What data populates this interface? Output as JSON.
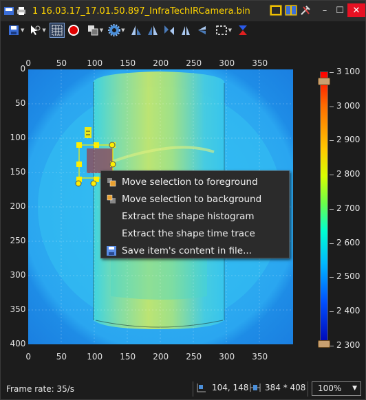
{
  "window": {
    "title": "1 16.03.17_17.01.50.897_InfraTechIRCamera.bin",
    "controls": [
      "minimize",
      "maximize",
      "close"
    ]
  },
  "toolbar": {
    "icons": [
      "save-icon",
      "pointer-tool-icon",
      "grid-select-icon",
      "record-icon",
      "layers-icon",
      "settings-gear-icon",
      "flip-vertical-icon",
      "flip-horizontal-icon",
      "rotate-icon",
      "mirror-icon",
      "arrow-left-icon",
      "selection-rect-icon",
      "marker-down-icon"
    ]
  },
  "image": {
    "x_ticks": [
      "0",
      "50",
      "100",
      "150",
      "200",
      "250",
      "300",
      "350"
    ],
    "y_ticks": [
      "0",
      "50",
      "100",
      "150",
      "200",
      "250",
      "300",
      "350",
      "400"
    ]
  },
  "colorbar": {
    "labels": [
      "3 100",
      "3 000",
      "2 900",
      "2 800",
      "2 700",
      "2 600",
      "2 500",
      "2 400",
      "2 300"
    ],
    "max_color": "#ff0000",
    "min_color": "#0000b0"
  },
  "context_menu": {
    "items": [
      {
        "label": "Move selection to foreground",
        "icon": "bring-front-icon"
      },
      {
        "label": "Move selection to background",
        "icon": "send-back-icon"
      },
      {
        "label": "Extract the shape histogram",
        "icon": ""
      },
      {
        "label": "Extract the shape time trace",
        "icon": ""
      },
      {
        "label": "Save item's content in file...",
        "icon": "floppy-disk-icon"
      }
    ]
  },
  "status": {
    "frame_rate": "Frame rate: 35/s",
    "cursor_position": "104, 148",
    "image_size": "384 * 408",
    "zoom": "100%"
  }
}
